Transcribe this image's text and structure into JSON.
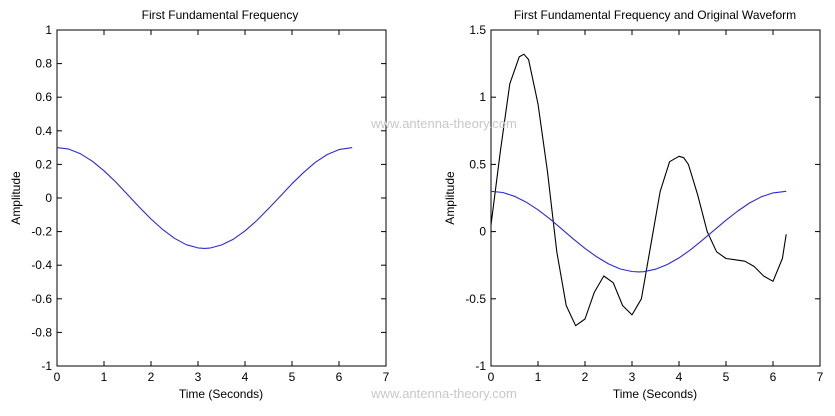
{
  "chart_data": [
    {
      "type": "line",
      "title": "First Fundamental Frequency",
      "xlabel": "Time (Seconds)",
      "ylabel": "Amplitude",
      "xlim": [
        0,
        7
      ],
      "ylim": [
        -1,
        1
      ],
      "xticks": [
        "0",
        "1",
        "2",
        "3",
        "4",
        "5",
        "6",
        "7"
      ],
      "yticks": [
        "-1",
        "-0.8",
        "-0.6",
        "-0.4",
        "-0.2",
        "0",
        "0.2",
        "0.4",
        "0.6",
        "0.8",
        "1"
      ],
      "grid": false,
      "series": [
        {
          "color": "#2b2bd6",
          "x": [
            0,
            0.25,
            0.5,
            0.75,
            1.0,
            1.25,
            1.5,
            1.75,
            2.0,
            2.25,
            2.5,
            2.75,
            3.0,
            3.14,
            3.25,
            3.5,
            3.75,
            4.0,
            4.25,
            4.5,
            4.75,
            5.0,
            5.25,
            5.5,
            5.75,
            6.0,
            6.28
          ],
          "y": [
            0.3,
            0.291,
            0.263,
            0.219,
            0.162,
            0.095,
            0.021,
            -0.054,
            -0.125,
            -0.188,
            -0.24,
            -0.278,
            -0.297,
            -0.3,
            -0.298,
            -0.28,
            -0.245,
            -0.196,
            -0.134,
            -0.063,
            0.011,
            0.085,
            0.153,
            0.213,
            0.259,
            0.288,
            0.3
          ]
        }
      ]
    },
    {
      "type": "line",
      "title": "First Fundamental Frequency and Original Waveform",
      "xlabel": "Time (Seconds)",
      "ylabel": "Amplitude",
      "xlim": [
        0,
        7
      ],
      "ylim": [
        -1,
        1.5
      ],
      "xticks": [
        "0",
        "1",
        "2",
        "3",
        "4",
        "5",
        "6",
        "7"
      ],
      "yticks": [
        "-1",
        "-0.5",
        "0",
        "0.5",
        "1",
        "1.5"
      ],
      "grid": false,
      "series": [
        {
          "color": "#000000",
          "x": [
            0,
            0.2,
            0.4,
            0.6,
            0.7,
            0.8,
            1.0,
            1.2,
            1.4,
            1.6,
            1.8,
            2.0,
            2.2,
            2.4,
            2.6,
            2.8,
            3.0,
            3.2,
            3.4,
            3.6,
            3.8,
            4.0,
            4.1,
            4.2,
            4.4,
            4.6,
            4.8,
            5.0,
            5.2,
            5.4,
            5.6,
            5.8,
            6.0,
            6.2,
            6.28
          ],
          "y": [
            0.05,
            0.6,
            1.1,
            1.3,
            1.32,
            1.28,
            0.95,
            0.45,
            -0.15,
            -0.55,
            -0.7,
            -0.65,
            -0.45,
            -0.33,
            -0.38,
            -0.55,
            -0.62,
            -0.5,
            -0.1,
            0.3,
            0.52,
            0.56,
            0.55,
            0.5,
            0.27,
            0.0,
            -0.15,
            -0.2,
            -0.21,
            -0.22,
            -0.26,
            -0.33,
            -0.37,
            -0.2,
            -0.02
          ]
        },
        {
          "color": "#2b2bd6",
          "x": [
            0,
            0.25,
            0.5,
            0.75,
            1.0,
            1.25,
            1.5,
            1.75,
            2.0,
            2.25,
            2.5,
            2.75,
            3.0,
            3.14,
            3.25,
            3.5,
            3.75,
            4.0,
            4.25,
            4.5,
            4.75,
            5.0,
            5.25,
            5.5,
            5.75,
            6.0,
            6.28
          ],
          "y": [
            0.3,
            0.291,
            0.263,
            0.219,
            0.162,
            0.095,
            0.021,
            -0.054,
            -0.125,
            -0.188,
            -0.24,
            -0.278,
            -0.297,
            -0.3,
            -0.298,
            -0.28,
            -0.245,
            -0.196,
            -0.134,
            -0.063,
            0.011,
            0.085,
            0.153,
            0.213,
            0.259,
            0.288,
            0.3
          ]
        }
      ]
    }
  ],
  "watermarks": [
    "www.antenna-theory.com",
    "www.antenna-theory.com"
  ]
}
